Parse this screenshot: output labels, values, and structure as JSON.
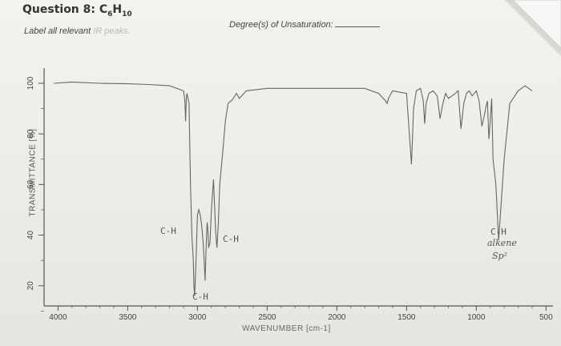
{
  "question": {
    "prefix": "Question 8: C",
    "sub1": "6",
    "mid": "H",
    "sub2": "10"
  },
  "instructions": {
    "text": "Label all relevant",
    "faded": " IR peaks."
  },
  "degree_label": "Degree(s) of Unsaturation:",
  "annotations": [
    {
      "id": "ch1",
      "text": "C-H"
    },
    {
      "id": "ch2",
      "text": "C-H"
    },
    {
      "id": "ch3",
      "text": "C-H"
    },
    {
      "id": "ch4",
      "text": "C-H"
    },
    {
      "id": "alkene",
      "text": "alkene"
    },
    {
      "id": "sp2",
      "text": "Sp²"
    }
  ],
  "chart_data": {
    "type": "line",
    "title": "",
    "xlabel": "WAVENUMBER [cm-1]",
    "ylabel": "TRANSMITTANCE [%]",
    "xlim": [
      4100,
      450
    ],
    "ylim": [
      12,
      106
    ],
    "xticks": [
      4000,
      3500,
      3000,
      2500,
      2000,
      1500,
      1000,
      500
    ],
    "yticks": [
      20,
      40,
      60,
      80,
      100
    ],
    "series": [
      {
        "x": [
          4030,
          3900,
          3700,
          3500,
          3350,
          3200,
          3100,
          3090,
          3085,
          3080,
          3075,
          3060,
          3055,
          3050,
          3040,
          3030,
          3025,
          3020,
          3010,
          3000,
          2990,
          2980,
          2970,
          2960,
          2950,
          2945,
          2935,
          2930,
          2925,
          2920,
          2910,
          2900,
          2885,
          2870,
          2865,
          2860,
          2850,
          2840,
          2820,
          2800,
          2780,
          2750,
          2720,
          2700,
          2650,
          2500,
          2300,
          2100,
          1900,
          1800,
          1700,
          1650,
          1640,
          1630,
          1600,
          1500,
          1480,
          1470,
          1465,
          1460,
          1450,
          1430,
          1400,
          1380,
          1370,
          1360,
          1340,
          1310,
          1280,
          1260,
          1240,
          1220,
          1200,
          1150,
          1130,
          1110,
          1090,
          1070,
          1050,
          1030,
          1000,
          980,
          960,
          940,
          930,
          920,
          910,
          900,
          890,
          880,
          860,
          840,
          800,
          760,
          700,
          650,
          600
        ],
        "y": [
          100,
          100.5,
          100,
          99.8,
          99.5,
          99,
          97,
          93,
          85,
          94,
          96,
          92,
          75,
          60,
          40,
          30,
          20,
          16,
          30,
          48,
          50,
          48,
          44,
          38,
          28,
          22,
          40,
          45,
          42,
          35,
          37,
          50,
          62,
          42,
          38,
          35,
          45,
          60,
          72,
          85,
          92,
          93.5,
          96,
          94,
          97,
          98,
          98,
          98,
          98,
          98,
          96,
          93,
          92,
          94,
          97,
          96,
          80,
          72,
          68,
          75,
          90,
          97,
          98,
          93,
          84,
          92,
          96,
          97,
          95,
          86,
          92,
          96,
          94,
          96,
          97,
          82,
          92,
          96,
          97,
          95,
          97,
          93,
          83,
          88,
          91,
          93,
          78,
          85,
          94,
          70,
          60,
          38,
          70,
          92,
          97,
          99,
          97
        ]
      }
    ]
  }
}
